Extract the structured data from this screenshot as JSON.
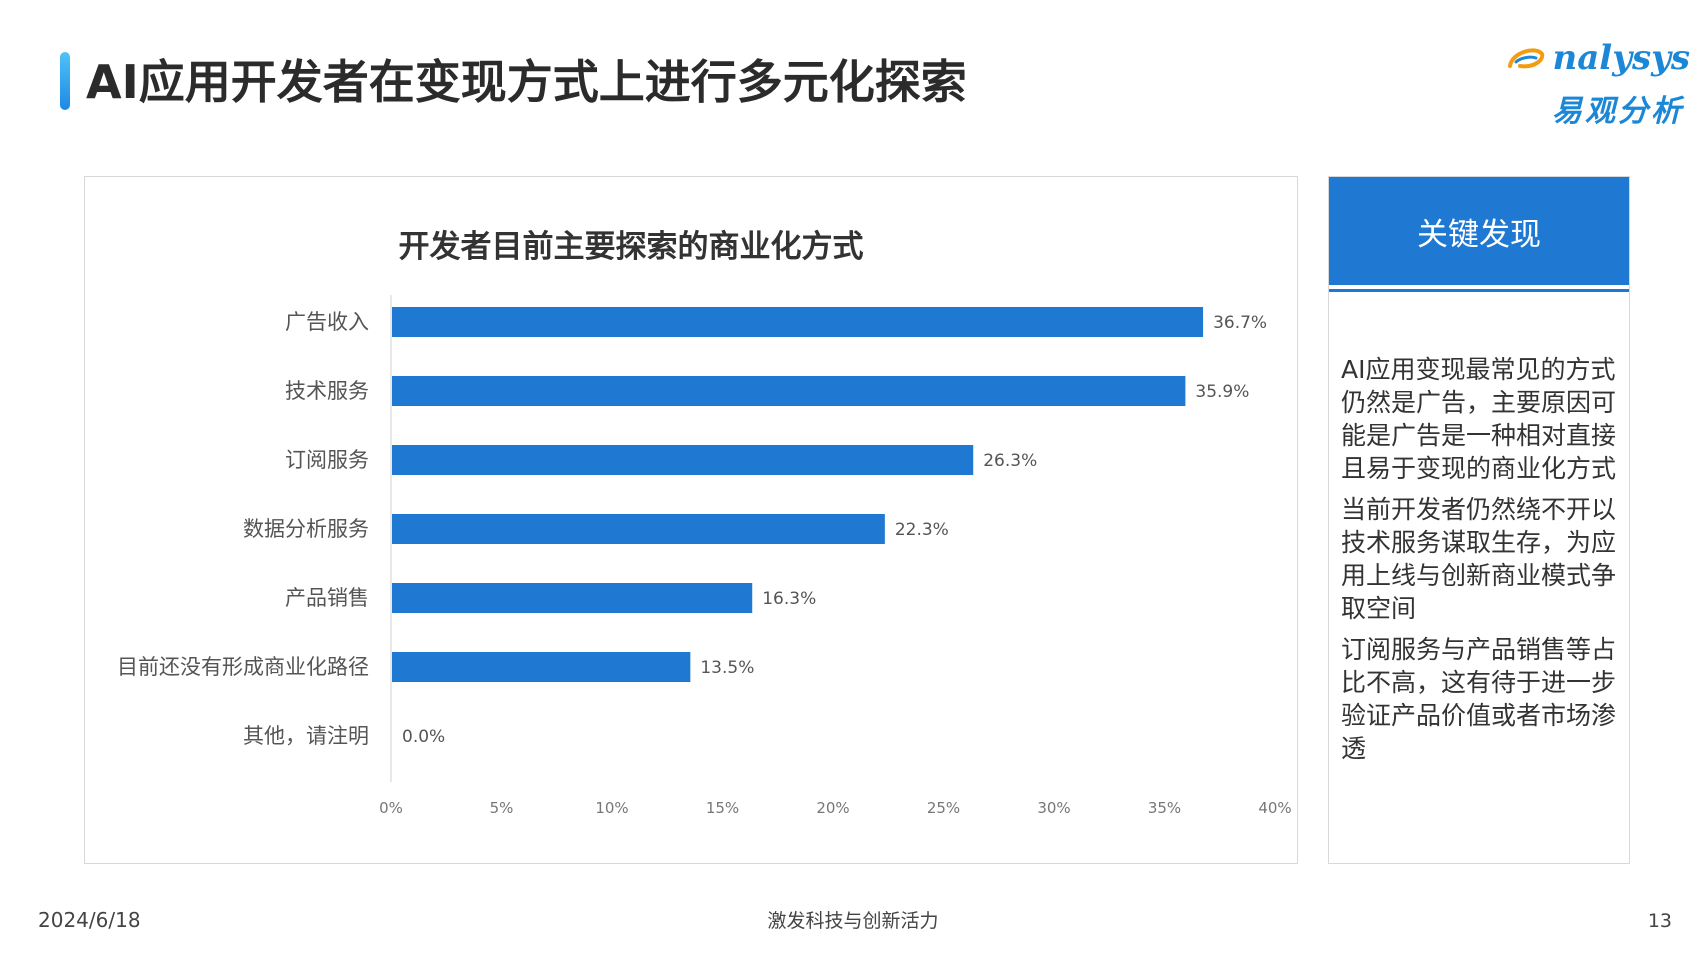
{
  "page": {
    "title": "AI应用开发者在变现方式上进行多元化探索",
    "logo_en": "nalysys",
    "logo_cn": "易观分析",
    "date": "2024/6/18",
    "footer": "激发科技与创新活力",
    "page_number": "13",
    "colors": {
      "accent": "#1f78d1",
      "bar": "#1f78d1",
      "logo": "#1b87d6"
    }
  },
  "side": {
    "header": "关键发现",
    "findings": [
      "AI应用变现最常见的方式仍然是广告，主要原因可能是广告是一种相对直接且易于变现的商业化方式",
      "当前开发者仍然绕不开以技术服务谋取生存，为应用上线与创新商业模式争取空间",
      "订阅服务与产品销售等占比不高，这有待于进一步验证产品价值或者市场渗透"
    ]
  },
  "chart_data": {
    "type": "bar",
    "orientation": "horizontal",
    "title": "开发者目前主要探索的商业化方式",
    "categories": [
      "广告收入",
      "技术服务",
      "订阅服务",
      "数据分析服务",
      "产品销售",
      "目前还没有形成商业化路径",
      "其他，请注明"
    ],
    "values": [
      36.7,
      35.9,
      26.3,
      22.3,
      16.3,
      13.5,
      0.0
    ],
    "value_labels": [
      "36.7%",
      "35.9%",
      "26.3%",
      "22.3%",
      "16.3%",
      "13.5%",
      "0.0%"
    ],
    "xlim": [
      0,
      40
    ],
    "x_ticks": [
      0,
      5,
      10,
      15,
      20,
      25,
      30,
      35,
      40
    ],
    "x_tick_labels": [
      "0%",
      "5%",
      "10%",
      "15%",
      "20%",
      "25%",
      "30%",
      "35%",
      "40%"
    ],
    "grid": false,
    "legend": "none"
  }
}
